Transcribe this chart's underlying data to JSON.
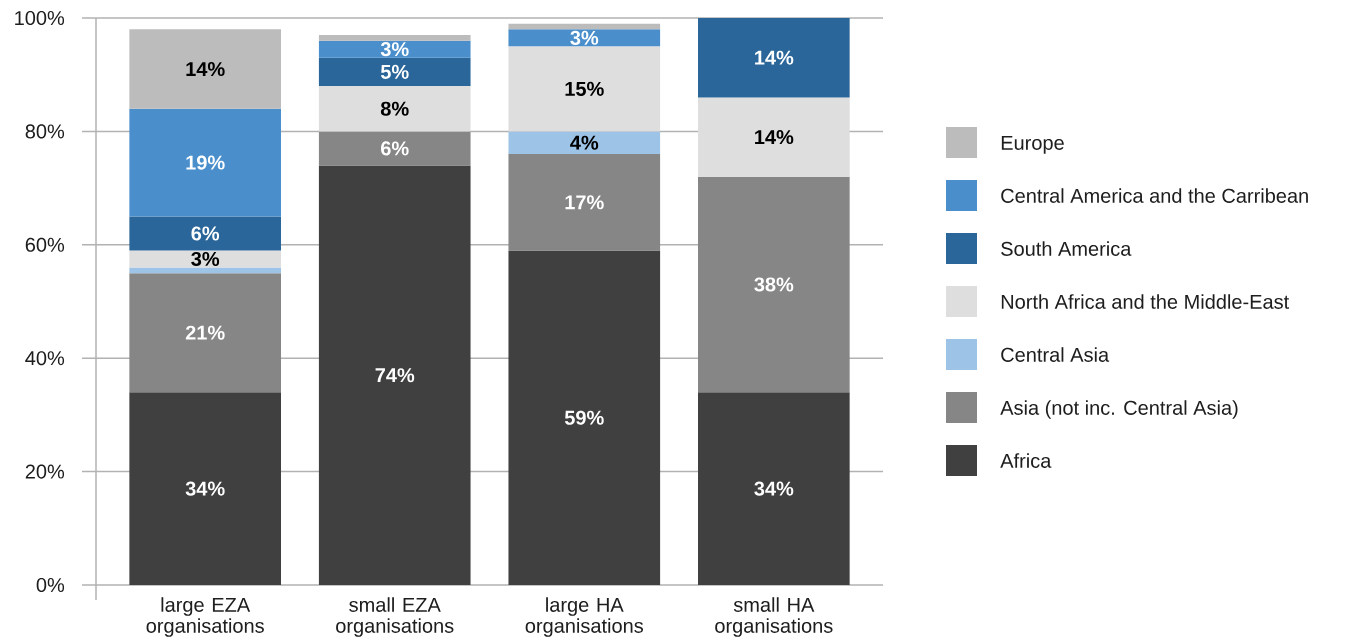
{
  "chart_data": {
    "type": "bar",
    "stacked": true,
    "categories": [
      "large EZA organisations",
      "small EZA organisations",
      "large HA organisations",
      "small HA organisations"
    ],
    "series": [
      {
        "name": "Africa",
        "color": "#404040",
        "values": [
          34,
          74,
          59,
          34
        ],
        "value_labels": [
          "34%",
          "74%",
          "59%",
          "34%"
        ]
      },
      {
        "name": "Asia (not inc. Central Asia)",
        "color": "#868686",
        "values": [
          21,
          6,
          17,
          38
        ],
        "value_labels": [
          "21%",
          "6%",
          "17%",
          "38%"
        ]
      },
      {
        "name": "Central Asia",
        "color": "#9dc3e6",
        "values": [
          1,
          null,
          4,
          null
        ],
        "value_labels": [
          null,
          null,
          "4%",
          null
        ]
      },
      {
        "name": "North Africa and the Middle-East",
        "color": "#dedede",
        "values": [
          3,
          8,
          15,
          14
        ],
        "value_labels": [
          "3%",
          "8%",
          "15%",
          "14%"
        ]
      },
      {
        "name": "South America",
        "color": "#2a6699",
        "values": [
          6,
          5,
          null,
          14
        ],
        "value_labels": [
          "6%",
          "5%",
          null,
          "14%"
        ]
      },
      {
        "name": "Central America and the Carribean",
        "color": "#4a8fcc",
        "values": [
          19,
          3,
          3,
          null
        ],
        "value_labels": [
          "19%",
          "3%",
          "3%",
          null
        ]
      },
      {
        "name": "Europe",
        "color": "#bcbcbc",
        "values": [
          14,
          1,
          1,
          null
        ],
        "value_labels": [
          "14%",
          null,
          null,
          null
        ]
      }
    ],
    "ylim": [
      0,
      100
    ],
    "yticks": [
      {
        "value": 0,
        "label": "0%"
      },
      {
        "value": 20,
        "label": "20%"
      },
      {
        "value": 40,
        "label": "40%"
      },
      {
        "value": 60,
        "label": "60%"
      },
      {
        "value": 80,
        "label": "80%"
      },
      {
        "value": 100,
        "label": "100%"
      }
    ],
    "grid": "y",
    "legend": "right"
  }
}
